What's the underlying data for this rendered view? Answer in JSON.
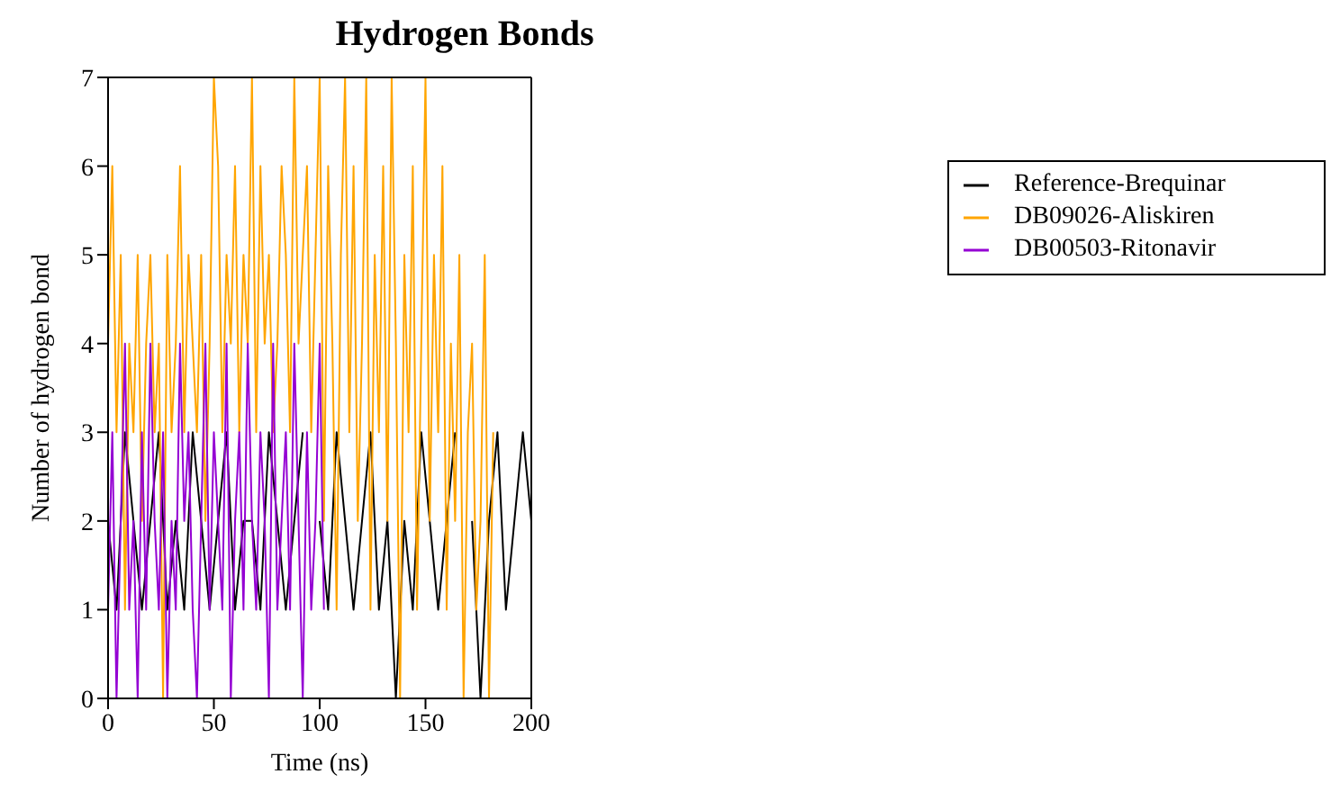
{
  "chart_data": {
    "type": "line",
    "title": "Hydrogen Bonds",
    "xlabel": "Time (ns)",
    "ylabel": "Number of hydrogen bond",
    "xlim": [
      0,
      200
    ],
    "xticks": [
      0,
      50,
      100,
      150,
      200
    ],
    "ylim": [
      0,
      7
    ],
    "yticks": [
      0,
      1,
      2,
      3,
      4,
      5,
      6,
      7
    ],
    "grid": false,
    "legend": "right",
    "marker": "none",
    "line_style": "solid",
    "series": [
      {
        "name": "Reference-Brequinar",
        "color": "#000000",
        "x": [
          0,
          4,
          8,
          12,
          16,
          20,
          24,
          28,
          32,
          36,
          40,
          44,
          48,
          52,
          56,
          60,
          64,
          68,
          72,
          76,
          80,
          84,
          88,
          92,
          96,
          100,
          104,
          108,
          112,
          116,
          120,
          124,
          128,
          132,
          136,
          140,
          144,
          148,
          152,
          156,
          160,
          164,
          168,
          172,
          176,
          180,
          184,
          188,
          192,
          196,
          200
        ],
        "values": [
          2,
          1,
          3,
          2,
          1,
          2,
          3,
          1,
          2,
          1,
          3,
          2,
          1,
          2,
          3,
          1,
          2,
          2,
          1,
          3,
          2,
          1,
          2,
          3,
          null,
          2,
          1,
          3,
          2,
          1,
          2,
          3,
          1,
          2,
          0,
          2,
          1,
          3,
          2,
          1,
          2,
          3,
          null,
          2,
          0,
          2,
          3,
          1,
          2,
          3,
          2
        ]
      },
      {
        "name": "DB09026-Aliskiren",
        "color": "#ffa500",
        "x": [
          0,
          2,
          4,
          6,
          8,
          10,
          12,
          14,
          16,
          18,
          20,
          22,
          24,
          26,
          28,
          30,
          32,
          34,
          36,
          38,
          40,
          42,
          44,
          46,
          48,
          50,
          52,
          54,
          56,
          58,
          60,
          62,
          64,
          66,
          68,
          70,
          72,
          74,
          76,
          78,
          80,
          82,
          84,
          86,
          88,
          90,
          92,
          94,
          96,
          98,
          100,
          102,
          104,
          106,
          108,
          110,
          112,
          114,
          116,
          118,
          120,
          122,
          124,
          126,
          128,
          130,
          132,
          134,
          136,
          138,
          140,
          142,
          144,
          146,
          148,
          150,
          152,
          154,
          156,
          158,
          160,
          162,
          164,
          166,
          168,
          170,
          172,
          174,
          176,
          178,
          180,
          182
        ],
        "values": [
          4,
          6,
          3,
          5,
          1,
          4,
          3,
          5,
          2,
          4,
          5,
          3,
          4,
          0,
          5,
          3,
          4,
          6,
          3,
          5,
          4,
          3,
          5,
          2,
          4,
          7,
          6,
          3,
          5,
          4,
          6,
          3,
          5,
          4,
          7,
          3,
          6,
          4,
          5,
          3,
          4,
          6,
          5,
          3,
          7,
          4,
          5,
          6,
          3,
          5,
          7,
          2,
          6,
          4,
          1,
          5,
          7,
          3,
          6,
          2,
          4,
          7,
          1,
          5,
          3,
          6,
          2,
          7,
          4,
          0,
          5,
          3,
          6,
          1,
          4,
          7,
          2,
          5,
          3,
          6,
          1,
          4,
          2,
          5,
          0,
          3,
          4,
          1,
          2,
          5,
          0,
          3
        ]
      },
      {
        "name": "DB00503-Ritonavir",
        "color": "#9400d3",
        "x": [
          0,
          2,
          4,
          6,
          8,
          10,
          12,
          14,
          16,
          18,
          20,
          22,
          24,
          26,
          28,
          30,
          32,
          34,
          36,
          38,
          40,
          42,
          44,
          46,
          48,
          50,
          52,
          54,
          56,
          58,
          60,
          62,
          64,
          66,
          68,
          70,
          72,
          74,
          76,
          78,
          80,
          82,
          84,
          86,
          88,
          90,
          92,
          94,
          96,
          98,
          100,
          102
        ],
        "values": [
          1,
          3,
          0,
          2,
          4,
          1,
          2,
          0,
          3,
          1,
          4,
          2,
          1,
          3,
          0,
          2,
          1,
          4,
          2,
          3,
          1,
          0,
          2,
          4,
          1,
          3,
          2,
          1,
          4,
          0,
          2,
          3,
          1,
          4,
          2,
          1,
          3,
          2,
          0,
          4,
          1,
          2,
          3,
          1,
          4,
          2,
          0,
          3,
          1,
          2,
          4,
          1
        ]
      }
    ]
  }
}
